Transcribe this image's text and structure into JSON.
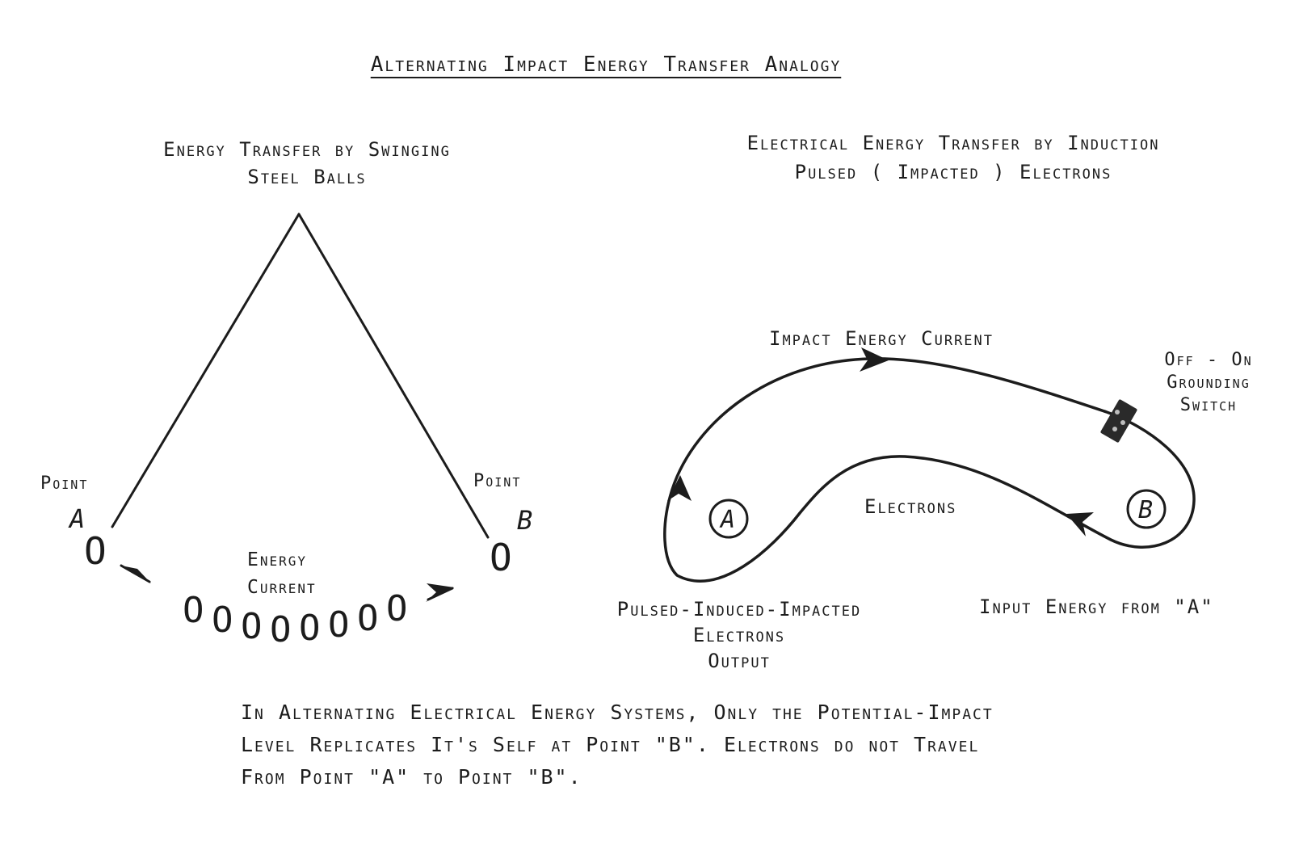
{
  "title": "Alternating Impact Energy Transfer Analogy",
  "left_panel": {
    "heading_line1": "Energy Transfer by Swinging",
    "heading_line2": "Steel Balls",
    "point_a_label": "Point",
    "point_a_letter": "A",
    "point_b_label": "Point",
    "point_b_letter": "B",
    "ball_glyph": "O",
    "energy_current_line1": "Energy",
    "energy_current_line2": "Current"
  },
  "right_panel": {
    "heading_line1": "Electrical Energy Transfer by Induction",
    "heading_line2": "Pulsed ( Impacted ) Electrons",
    "impact_label": "Impact Energy Current",
    "switch_line1": "Off - On",
    "switch_line2": "Grounding",
    "switch_line3": "Switch",
    "electrons_label": "Electrons",
    "node_a": "A",
    "node_b": "B",
    "output_line1": "Pulsed-Induced-Impacted",
    "output_line2": "Electrons",
    "output_line3": "Output",
    "input_label": "Input Energy from \"A\""
  },
  "note": {
    "line1": "In Alternating Electrical Energy Systems, Only the Potential-Impact",
    "line2": "Level Replicates It's Self at Point \"B\".  Electrons do not Travel",
    "line3": "From Point \"A\" to Point \"B\"."
  }
}
